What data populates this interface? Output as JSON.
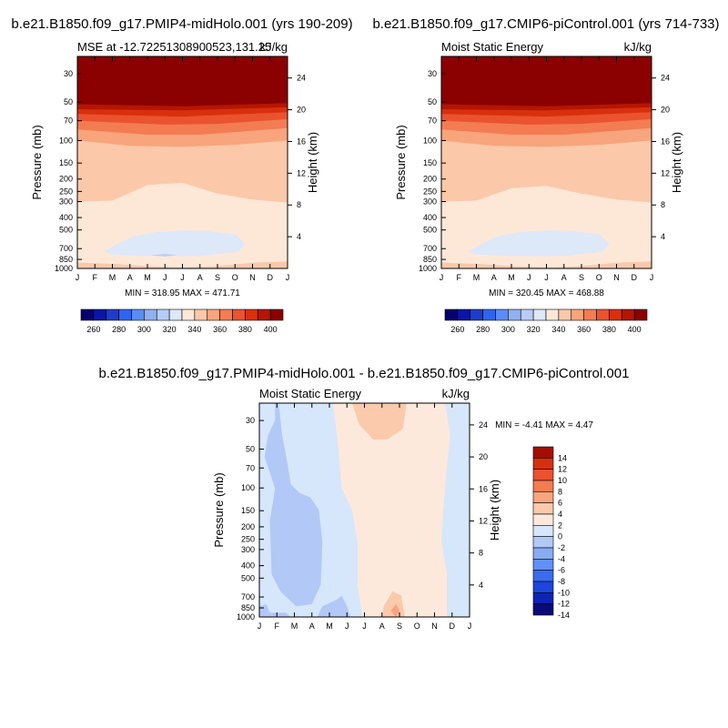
{
  "figure": {
    "title_left": "b.e21.B1850.f09_g17.PMIP4-midHolo.001 (yrs 190-209)",
    "title_right": "b.e21.B1850.f09_g17.CMIP6-piControl.001 (yrs 714-733)",
    "title_bottom": "b.e21.B1850.f09_g17.PMIP4-midHolo.001 - b.e21.B1850.f09_g17.CMIP6-piControl.001"
  },
  "colors": {
    "abs_scale": [
      "#08006e",
      "#0a14a6",
      "#1e3ccc",
      "#2f64ee",
      "#5b8cf5",
      "#8fb0f3",
      "#b8cdf6",
      "#dde8f8",
      "#fde8d8",
      "#fcc8aa",
      "#f8a47c",
      "#f47c52",
      "#ea5230",
      "#d8300e",
      "#b51600",
      "#8b0000"
    ],
    "diff_scale": [
      "#0a0a78",
      "#0c24b4",
      "#1c46dc",
      "#3a6cf0",
      "#6290f6",
      "#88acf2",
      "#b2c8f6",
      "#d6e6fb",
      "#fde9dc",
      "#fbc9ac",
      "#f8a47c",
      "#f47c52",
      "#ea5230",
      "#d8300e",
      "#a40e00"
    ]
  },
  "chart_data": [
    {
      "type": "contour",
      "panel": "top-left",
      "title": "MSE at -12.72251308900523,131.25",
      "units": "kJ/kg",
      "ylabel": "Pressure (mb)",
      "ylabel_right": "Height (km)",
      "stats": "MIN = 318.95 MAX = 471.71",
      "x_ticks": [
        "J",
        "F",
        "M",
        "A",
        "M",
        "J",
        "J",
        "A",
        "S",
        "O",
        "N",
        "D",
        "J"
      ],
      "y_ticks": [
        30,
        50,
        70,
        100,
        150,
        200,
        250,
        300,
        400,
        500,
        700,
        850,
        1000
      ],
      "y_scale": "log",
      "y_range": [
        1000,
        22
      ],
      "height_ticks": [
        4,
        8,
        12,
        16,
        20,
        24
      ],
      "levels": [
        260,
        270,
        280,
        290,
        300,
        310,
        320,
        330,
        340,
        350,
        360,
        370,
        380,
        390,
        400
      ],
      "colorbar_labels": [
        260,
        280,
        300,
        320,
        340,
        360,
        380,
        400
      ]
    },
    {
      "type": "contour",
      "panel": "top-right",
      "title": "Moist Static Energy",
      "units": "kJ/kg",
      "ylabel": "Pressure (mb)",
      "ylabel_right": "Height (km)",
      "stats": "MIN = 320.45 MAX = 468.88",
      "x_ticks": [
        "J",
        "F",
        "M",
        "A",
        "M",
        "J",
        "J",
        "A",
        "S",
        "O",
        "N",
        "D",
        "J"
      ],
      "y_ticks": [
        30,
        50,
        70,
        100,
        150,
        200,
        250,
        300,
        400,
        500,
        700,
        850,
        1000
      ],
      "y_scale": "log",
      "y_range": [
        1000,
        22
      ],
      "height_ticks": [
        4,
        8,
        12,
        16,
        20,
        24
      ],
      "levels": [
        260,
        270,
        280,
        290,
        300,
        310,
        320,
        330,
        340,
        350,
        360,
        370,
        380,
        390,
        400
      ],
      "colorbar_labels": [
        260,
        280,
        300,
        320,
        340,
        360,
        380,
        400
      ]
    },
    {
      "type": "contour",
      "panel": "bottom",
      "title": "Moist Static Energy",
      "units": "kJ/kg",
      "ylabel": "Pressure (mb)",
      "ylabel_right": "Height (km)",
      "stats": "MIN =  -4.41 MAX =   4.47",
      "x_ticks": [
        "J",
        "F",
        "M",
        "A",
        "M",
        "J",
        "J",
        "A",
        "S",
        "O",
        "N",
        "D",
        "J"
      ],
      "y_ticks": [
        30,
        50,
        70,
        100,
        150,
        200,
        250,
        300,
        400,
        500,
        700,
        850,
        1000
      ],
      "y_scale": "log",
      "y_range": [
        1000,
        22
      ],
      "height_ticks": [
        4,
        8,
        12,
        16,
        20,
        24
      ],
      "levels": [
        -14,
        -12,
        -10,
        -8,
        -6,
        -4,
        -2,
        0,
        2,
        4,
        6,
        8,
        10,
        12,
        14
      ],
      "colorbar_labels": [
        14,
        12,
        10,
        8,
        6,
        4,
        2,
        0,
        -2,
        -4,
        -6,
        -8,
        -10,
        -12,
        -14
      ]
    }
  ]
}
